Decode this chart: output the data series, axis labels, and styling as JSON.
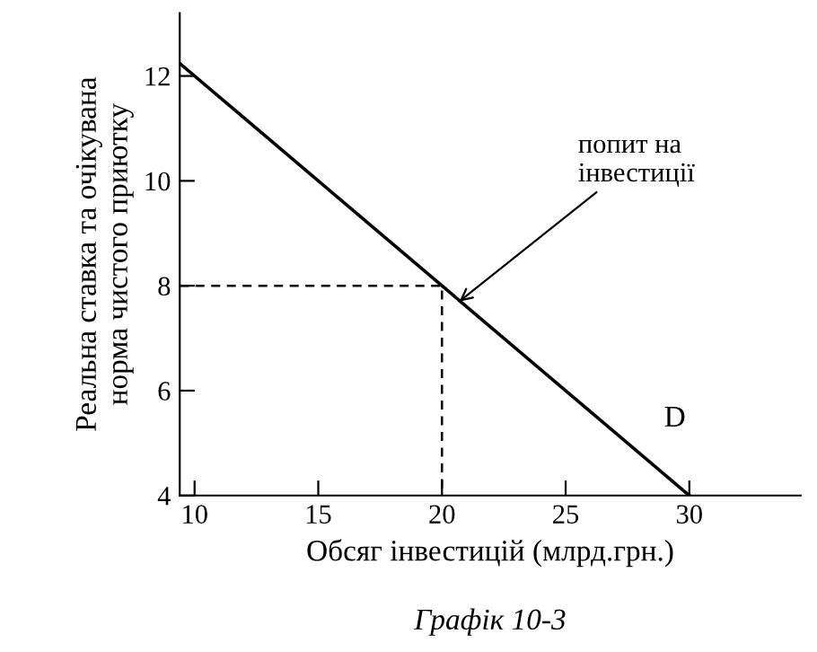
{
  "chart_data": {
    "type": "line",
    "xlabel": "Обсяг інвестицій (млрд.грн.)",
    "ylabel": "Реальна ставка та очікувана\nнорма чистого приютку",
    "xlim": [
      9.4,
      34.5
    ],
    "xticks": [
      10,
      15,
      20,
      25,
      30
    ],
    "ylim": [
      4,
      13.2
    ],
    "yticks": [
      4,
      6,
      8,
      10,
      12
    ],
    "grid": false,
    "legend": false,
    "series": [
      {
        "color": "#000000",
        "line_style": "solid",
        "x": [
          9.4,
          30
        ],
        "values": [
          12.24,
          4
        ]
      },
      {
        "color": "#000000",
        "line_style": "dashed",
        "x": [
          9.4,
          20,
          20
        ],
        "values": [
          8,
          8,
          4
        ]
      }
    ],
    "annotations": [
      {
        "text": "попит на\nінвестиції",
        "x": 20.7,
        "y": 7.7
      },
      "D",
      "Графік 10-3"
    ]
  }
}
